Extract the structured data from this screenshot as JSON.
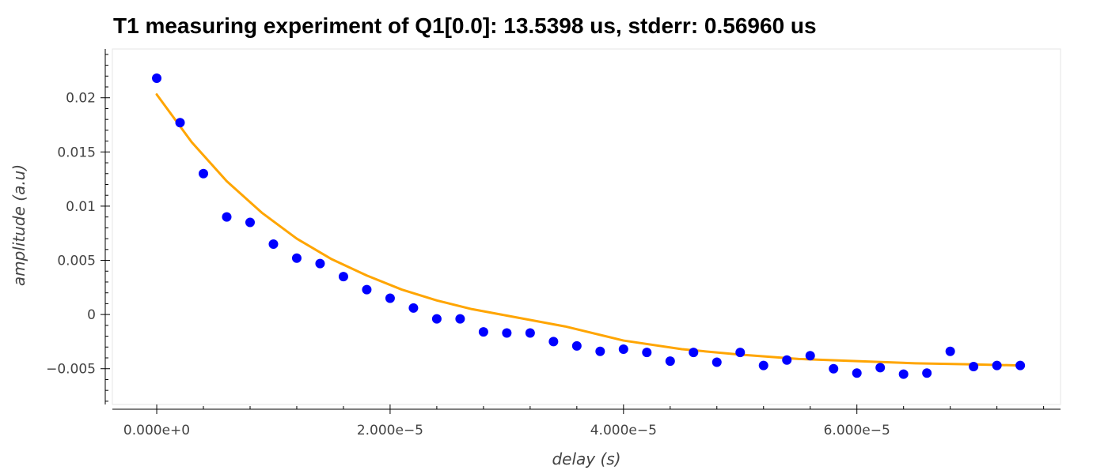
{
  "chart_data": {
    "type": "scatter",
    "title": "T1 measuring experiment of Q1[0.0]: 13.5398 us, stderr: 0.56960 us",
    "xlabel": "delay (s)",
    "ylabel": "amplitude (a.u)",
    "xlim": [
      -3.8e-06,
      7.745e-05
    ],
    "ylim": [
      -0.0083,
      0.0245
    ],
    "xticks": [
      0,
      2e-05,
      4e-05,
      6e-05
    ],
    "xtick_labels": [
      "0.000e+0",
      "2.000e−5",
      "4.000e−5",
      "6.000e−5"
    ],
    "yticks": [
      -0.005,
      0,
      0.005,
      0.01,
      0.015,
      0.02
    ],
    "ytick_labels": [
      "−0.005",
      "0",
      "0.005",
      "0.01",
      "0.015",
      "0.02"
    ],
    "grid": false,
    "series": [
      {
        "kind": "scatter",
        "color": "#0000ff",
        "x": [
          0,
          2e-06,
          4e-06,
          6e-06,
          8e-06,
          1e-05,
          1.2e-05,
          1.4e-05,
          1.6e-05,
          1.8e-05,
          2e-05,
          2.2e-05,
          2.4e-05,
          2.6e-05,
          2.8e-05,
          3e-05,
          3.2e-05,
          3.4e-05,
          3.6e-05,
          3.8e-05,
          4e-05,
          4.2e-05,
          4.4e-05,
          4.6e-05,
          4.8e-05,
          5e-05,
          5.2e-05,
          5.4e-05,
          5.6e-05,
          5.8e-05,
          6e-05,
          6.2e-05,
          6.4e-05,
          6.6e-05,
          6.8e-05,
          7e-05,
          7.2e-05,
          7.4e-05
        ],
        "y": [
          0.0218,
          0.0177,
          0.013,
          0.009,
          0.0085,
          0.0065,
          0.0052,
          0.0047,
          0.0035,
          0.0023,
          0.0015,
          0.0006,
          -0.0004,
          -0.0004,
          -0.0016,
          -0.0017,
          -0.0017,
          -0.0025,
          -0.0029,
          -0.0034,
          -0.0032,
          -0.0035,
          -0.0043,
          -0.0035,
          -0.0044,
          -0.0035,
          -0.0047,
          -0.0042,
          -0.0038,
          -0.005,
          -0.0054,
          -0.0049,
          -0.0055,
          -0.0054,
          -0.0034,
          -0.0048,
          -0.0047,
          -0.0047
        ]
      },
      {
        "kind": "line",
        "color": "#ffa500",
        "x": [
          0,
          3e-06,
          6e-06,
          9e-06,
          1.2e-05,
          1.5e-05,
          1.8e-05,
          2.1e-05,
          2.4e-05,
          2.7e-05,
          3e-05,
          3.5e-05,
          4e-05,
          4.5e-05,
          5e-05,
          5.5e-05,
          6e-05,
          6.5e-05,
          7e-05,
          7.4e-05
        ],
        "y": [
          0.0203,
          0.0159,
          0.0123,
          0.0094,
          0.007,
          0.0051,
          0.0036,
          0.0023,
          0.0013,
          0.0005,
          -0.0001,
          -0.0011,
          -0.0024,
          -0.0032,
          -0.0037,
          -0.0041,
          -0.0043,
          -0.0045,
          -0.0046,
          -0.0047
        ]
      }
    ]
  }
}
